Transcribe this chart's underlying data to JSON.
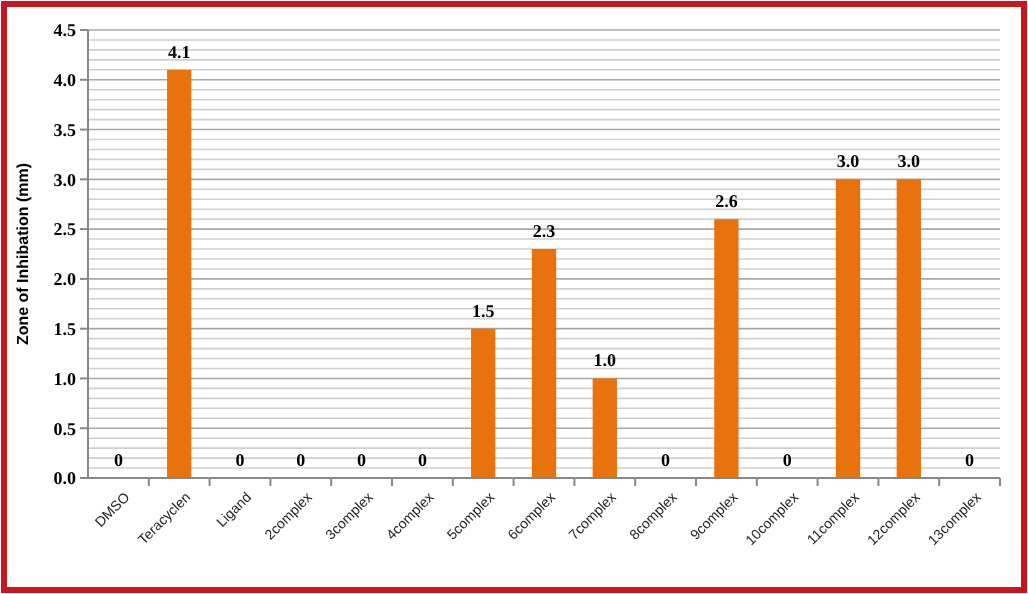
{
  "chart_data": {
    "type": "bar",
    "ylabel": "Zone of Inhibation (mm)",
    "categories": [
      "DMSO",
      "Teracyclen",
      "Ligand",
      "2complex",
      "3complex",
      "4complex",
      "5complex",
      "6complex",
      "7complex",
      "8complex",
      "9complex",
      "10complex",
      "11complex",
      "12complex",
      "13complex"
    ],
    "values": [
      0,
      4.1,
      0,
      0,
      0,
      0,
      1.5,
      2.3,
      1.0,
      0,
      2.6,
      0,
      3.0,
      3.0,
      0
    ],
    "value_labels": [
      "0",
      "4.1",
      "0",
      "0",
      "0",
      "0",
      "1.5",
      "2.3",
      "1.0",
      "0",
      "2.6",
      "0",
      "3.0",
      "3.0",
      "0"
    ],
    "color": "#e8720c",
    "ylim": [
      0,
      4.5
    ],
    "yticks": [
      {
        "value": 0,
        "label": "0.0"
      },
      {
        "value": 0.1,
        "label": null
      },
      {
        "value": 0.2,
        "label": null
      },
      {
        "value": 0.3,
        "label": null
      },
      {
        "value": 0.4,
        "label": null
      },
      0.5,
      {
        "value": 0.6,
        "label": null
      },
      {
        "value": 0.7,
        "label": null
      },
      {
        "value": 0.8,
        "label": null
      },
      {
        "value": 0.9,
        "label": null
      },
      {
        "value": 1,
        "label": "1.0"
      },
      {
        "value": 1.1,
        "label": null
      },
      {
        "value": 1.2,
        "label": null
      },
      {
        "value": 1.3,
        "label": null
      },
      {
        "value": 1.4,
        "label": null
      },
      1.5,
      {
        "value": 1.6,
        "label": null
      },
      {
        "value": 1.7,
        "label": null
      },
      {
        "value": 1.8,
        "label": null
      },
      {
        "value": 1.9,
        "label": null
      },
      {
        "value": 2,
        "label": "2.0"
      },
      {
        "value": 2.1,
        "label": null
      },
      {
        "value": 2.2,
        "label": null
      },
      {
        "value": 2.3,
        "label": null
      },
      {
        "value": 2.4,
        "label": null
      },
      2.5,
      {
        "value": 2.6,
        "label": null
      },
      {
        "value": 2.7,
        "label": null
      },
      {
        "value": 2.8,
        "label": null
      },
      {
        "value": 2.9,
        "label": null
      },
      {
        "value": 3,
        "label": "3.0"
      },
      {
        "value": 3.1,
        "label": null
      },
      {
        "value": 3.2,
        "label": null
      },
      {
        "value": 3.3,
        "label": null
      },
      {
        "value": 3.4,
        "label": null
      },
      3.5,
      {
        "value": 3.6,
        "label": null
      },
      {
        "value": 3.7,
        "label": null
      },
      {
        "value": 3.8,
        "label": null
      },
      {
        "value": 3.9,
        "label": null
      },
      {
        "value": 4,
        "label": "4.0"
      },
      {
        "value": 4.1,
        "label": null
      },
      {
        "value": 4.2,
        "label": null
      },
      {
        "value": 4.3,
        "label": null
      },
      {
        "value": 4.4,
        "label": null
      },
      4.5
    ],
    "grid": "y"
  }
}
